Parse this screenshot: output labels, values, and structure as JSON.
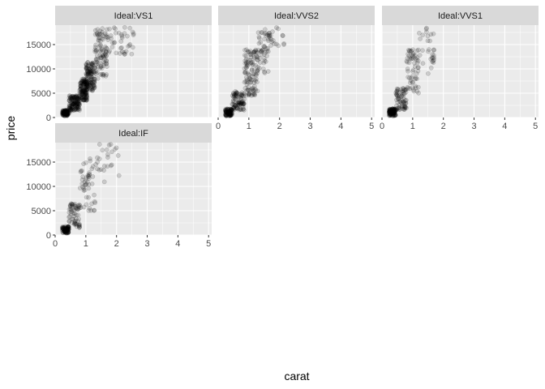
{
  "chart_data": {
    "type": "scatter",
    "facet_layout": "wrap",
    "xlabel": "carat",
    "ylabel": "price",
    "xlim": [
      0,
      5.1
    ],
    "ylim": [
      0,
      19000
    ],
    "x_ticks": [
      0,
      1,
      2,
      3,
      4,
      5
    ],
    "y_ticks": [
      0,
      5000,
      10000,
      15000
    ],
    "grid": true,
    "point_color": "#000000",
    "point_alpha": 0.15,
    "panel_background": "#ebebeb",
    "strip_background": "#d9d9d9",
    "panels": [
      {
        "strip": "Ideal:VS1",
        "clusters": [
          {
            "x_range": [
              0.23,
              0.45
            ],
            "y_range": [
              340,
              1500
            ],
            "n": 100
          },
          {
            "x_range": [
              0.45,
              0.8
            ],
            "y_range": [
              1400,
              4500
            ],
            "n": 130
          },
          {
            "x_range": [
              0.8,
              1.05
            ],
            "y_range": [
              3500,
              8000
            ],
            "n": 130
          },
          {
            "x_range": [
              1.0,
              1.3
            ],
            "y_range": [
              5500,
              11500
            ],
            "n": 120
          },
          {
            "x_range": [
              1.3,
              1.7
            ],
            "y_range": [
              8000,
              18700
            ],
            "n": 90
          },
          {
            "x_range": [
              1.7,
              2.6
            ],
            "y_range": [
              13000,
              18700
            ],
            "n": 40
          }
        ]
      },
      {
        "strip": "Ideal:VVS2",
        "clusters": [
          {
            "x_range": [
              0.23,
              0.45
            ],
            "y_range": [
              340,
              1800
            ],
            "n": 90
          },
          {
            "x_range": [
              0.45,
              0.85
            ],
            "y_range": [
              1500,
              5500
            ],
            "n": 90
          },
          {
            "x_range": [
              0.85,
              1.3
            ],
            "y_range": [
              4500,
              14000
            ],
            "n": 110
          },
          {
            "x_range": [
              1.3,
              1.7
            ],
            "y_range": [
              9000,
              18700
            ],
            "n": 50
          },
          {
            "x_range": [
              1.7,
              2.15
            ],
            "y_range": [
              14000,
              18500
            ],
            "n": 15
          }
        ]
      },
      {
        "strip": "Ideal:VVS1",
        "clusters": [
          {
            "x_range": [
              0.23,
              0.45
            ],
            "y_range": [
              340,
              1800
            ],
            "n": 110
          },
          {
            "x_range": [
              0.45,
              0.8
            ],
            "y_range": [
              1500,
              6000
            ],
            "n": 70
          },
          {
            "x_range": [
              0.8,
              1.2
            ],
            "y_range": [
              5000,
              14000
            ],
            "n": 60
          },
          {
            "x_range": [
              1.2,
              1.7
            ],
            "y_range": [
              9000,
              18700
            ],
            "n": 30
          }
        ]
      },
      {
        "strip": "Ideal:IF",
        "clusters": [
          {
            "x_range": [
              0.23,
              0.45
            ],
            "y_range": [
              340,
              1800
            ],
            "n": 90
          },
          {
            "x_range": [
              0.45,
              0.8
            ],
            "y_range": [
              1500,
              6500
            ],
            "n": 60
          },
          {
            "x_range": [
              0.8,
              1.3
            ],
            "y_range": [
              5000,
              16000
            ],
            "n": 50
          },
          {
            "x_range": [
              1.3,
              2.1
            ],
            "y_range": [
              10000,
              18700
            ],
            "n": 25
          }
        ]
      }
    ]
  }
}
